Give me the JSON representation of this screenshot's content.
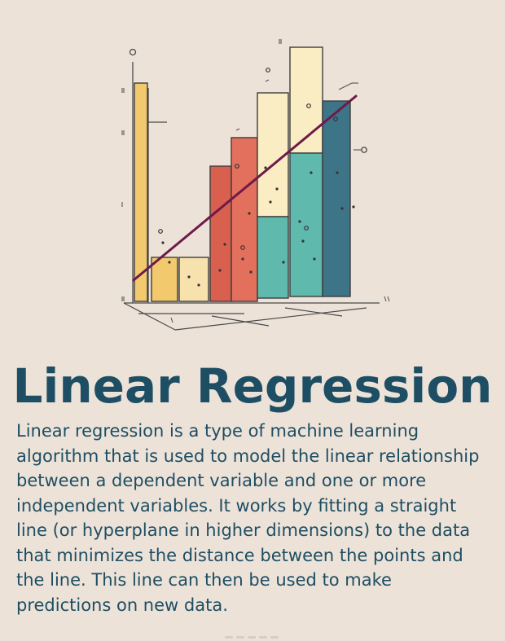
{
  "title": "Linear Regression",
  "description_lines": [
    "Linear regression is a type of machine learning",
    "algorithm that is used to model the linear relationship",
    "between a dependent variable and one or more",
    "independent variables. It works by fitting a straight",
    "line (or hyperplane in higher dimensions) to the data",
    "that minimizes the distance between the points and",
    "the line. This line can then be used to make",
    "predictions on new data."
  ],
  "illustration": {
    "bar_colors": [
      "#f2c96d",
      "#f7e2ae",
      "#d95f4f",
      "#e2705c",
      "#faecc3",
      "#5fb9ad",
      "#3e7488"
    ],
    "fit_line_color": "#6e1a4a"
  }
}
